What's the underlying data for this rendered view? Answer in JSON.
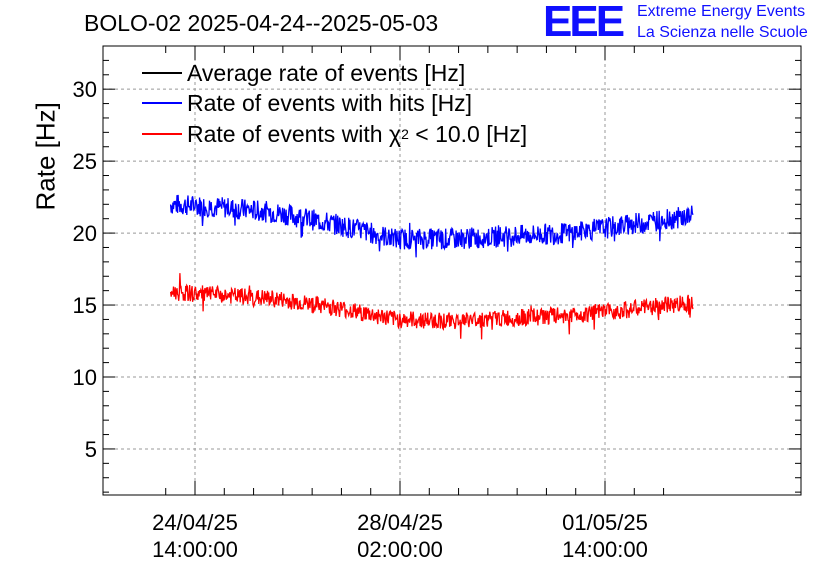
{
  "header": {
    "title": "BOLO-02 2025-04-24--2025-05-03",
    "logo_text": "EEE",
    "logo_line1": "Extreme Energy Events",
    "logo_line2": "La Scienza nelle Scuole",
    "logo_color": "#1010ff"
  },
  "chart_data": {
    "type": "line",
    "title": "BOLO-02 2025-04-24--2025-05-03",
    "ylabel": "Rate [Hz]",
    "xlabel": "",
    "ylim": [
      1.8,
      33
    ],
    "y_ticks": [
      "5",
      "10",
      "15",
      "20",
      "25",
      "30"
    ],
    "x_ticks": [
      {
        "date": "24/04/25",
        "time": "14:00:00"
      },
      {
        "date": "28/04/25",
        "time": "02:00:00"
      },
      {
        "date": "01/05/25",
        "time": "14:00:00"
      }
    ],
    "grid": true,
    "legend_placement": "top-left",
    "legend": [
      {
        "label": "Average rate of events [Hz]",
        "color": "#000000"
      },
      {
        "label": "Rate of events with hits [Hz]",
        "color": "#0000ff"
      },
      {
        "label_prefix": "Rate of events with ",
        "label_symbol": "χ",
        "label_sup": "2",
        "label_suffix": " < 10.0 [Hz]",
        "color": "#ff0000"
      }
    ],
    "series": [
      {
        "name": "Rate of events with hits [Hz]",
        "color": "#0000ff",
        "x": [
          "2025-04-24 04:00",
          "2025-04-25 00:00",
          "2025-04-26 00:00",
          "2025-04-27 00:00",
          "2025-04-28 00:00",
          "2025-04-29 00:00",
          "2025-04-30 00:00",
          "2025-05-01 00:00",
          "2025-05-02 00:00",
          "2025-05-03 02:00"
        ],
        "values": [
          22.0,
          21.8,
          21.4,
          20.6,
          19.6,
          19.6,
          19.8,
          20.0,
          20.6,
          21.2
        ]
      },
      {
        "name": "Rate of events with χ2 < 10.0 [Hz]",
        "color": "#ff0000",
        "x": [
          "2025-04-24 04:00",
          "2025-04-25 00:00",
          "2025-04-26 00:00",
          "2025-04-27 00:00",
          "2025-04-28 00:00",
          "2025-04-29 00:00",
          "2025-04-30 00:00",
          "2025-05-01 00:00",
          "2025-05-02 00:00",
          "2025-05-03 02:00"
        ],
        "values": [
          15.9,
          15.7,
          15.4,
          14.8,
          14.0,
          13.9,
          14.1,
          14.3,
          14.7,
          15.2
        ]
      }
    ]
  }
}
